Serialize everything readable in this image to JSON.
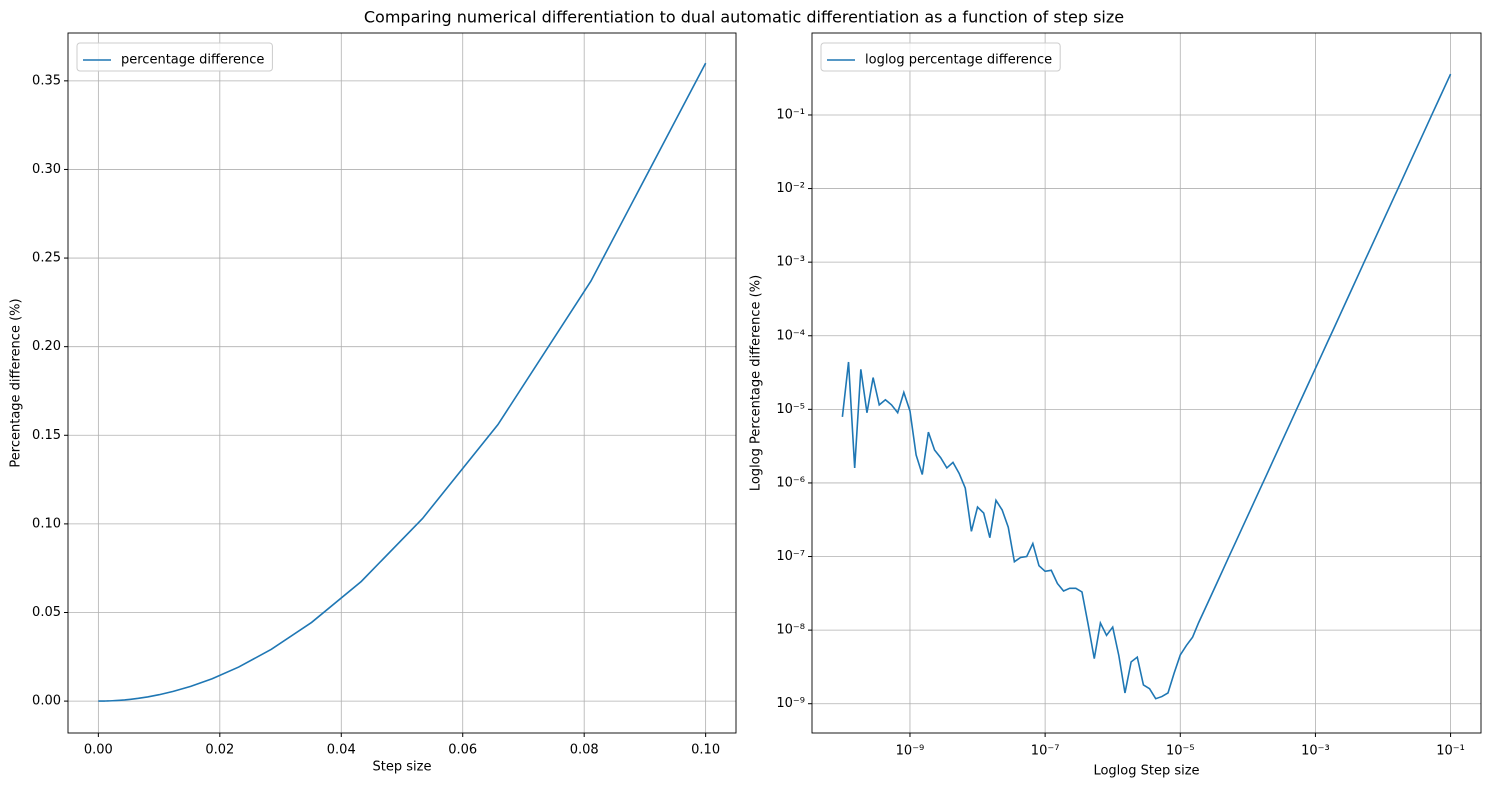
{
  "title": "Comparing numerical differentiation to dual automatic differentiation as a function of step size",
  "chart_data": [
    {
      "type": "line",
      "xlabel": "Step size",
      "ylabel": "Percentage difference (%)",
      "grid": true,
      "legend": "upper left",
      "xscale": "linear",
      "yscale": "linear",
      "xlim": [
        -0.005,
        0.105
      ],
      "ylim": [
        -0.018,
        0.377
      ],
      "xticks": [
        {
          "value": 0,
          "label": "0.00"
        },
        {
          "value": 0.02,
          "label": "0.02"
        },
        {
          "value": 0.04,
          "label": "0.04"
        },
        {
          "value": 0.06,
          "label": "0.06"
        },
        {
          "value": 0.08,
          "label": "0.08"
        },
        {
          "value": 0.1,
          "label": "0.10"
        }
      ],
      "yticks": [
        {
          "value": 0,
          "label": "0.00"
        },
        {
          "value": 0.05,
          "label": "0.05"
        },
        {
          "value": 0.1,
          "label": "0.10"
        },
        {
          "value": 0.15,
          "label": "0.15"
        },
        {
          "value": 0.2,
          "label": "0.20"
        },
        {
          "value": 0.25,
          "label": "0.25"
        },
        {
          "value": 0.3,
          "label": "0.30"
        },
        {
          "value": 0.35,
          "label": "0.35"
        }
      ],
      "x": [
        1e-10,
        0.001,
        0.001233,
        0.00152,
        0.001874,
        0.00231,
        0.002848,
        0.003511,
        0.004329,
        0.005337,
        0.006579,
        0.008111,
        0.01,
        0.01233,
        0.0152,
        0.01874,
        0.0231,
        0.02848,
        0.03511,
        0.04329,
        0.05337,
        0.06579,
        0.08111,
        0.1
      ],
      "series": [
        {
          "name": "percentage difference",
          "color": "#1f77b4",
          "values": [
            7.9e-06,
            3.6e-05,
            5.47e-05,
            8.32e-05,
            0.000126,
            0.000192,
            0.000292,
            0.000444,
            0.000675,
            0.00103,
            0.00156,
            0.00237,
            0.0036,
            0.00547,
            0.00832,
            0.0126,
            0.0192,
            0.0292,
            0.0444,
            0.0675,
            0.103,
            0.156,
            0.237,
            0.36
          ]
        }
      ]
    },
    {
      "type": "line",
      "xlabel": "Loglog Step size",
      "ylabel": "Loglog Percentage difference (%)",
      "grid": true,
      "legend": "upper left",
      "xscale": "log",
      "yscale": "log",
      "xlim": [
        3.55e-11,
        0.282
      ],
      "ylim": [
        4e-10,
        1.3
      ],
      "xticks": [
        {
          "value": 1e-09,
          "label": "10⁻⁹"
        },
        {
          "value": 1e-07,
          "label": "10⁻⁷"
        },
        {
          "value": 1e-05,
          "label": "10⁻⁵"
        },
        {
          "value": 0.001,
          "label": "10⁻³"
        },
        {
          "value": 0.1,
          "label": "10⁻¹"
        }
      ],
      "yticks": [
        {
          "value": 1e-09,
          "label": "10⁻⁹"
        },
        {
          "value": 1e-08,
          "label": "10⁻⁸"
        },
        {
          "value": 1e-07,
          "label": "10⁻⁷"
        },
        {
          "value": 1e-06,
          "label": "10⁻⁶"
        },
        {
          "value": 1e-05,
          "label": "10⁻⁵"
        },
        {
          "value": 0.0001,
          "label": "10⁻⁴"
        },
        {
          "value": 0.001,
          "label": "10⁻³"
        },
        {
          "value": 0.01,
          "label": "10⁻²"
        },
        {
          "value": 0.1,
          "label": "10⁻¹"
        }
      ],
      "x": [
        1e-10,
        1.233e-10,
        1.52e-10,
        1.874e-10,
        2.31e-10,
        2.848e-10,
        3.511e-10,
        4.329e-10,
        5.337e-10,
        6.579e-10,
        8.111e-10,
        1e-09,
        1.233e-09,
        1.52e-09,
        1.874e-09,
        2.31e-09,
        2.848e-09,
        3.511e-09,
        4.329e-09,
        5.337e-09,
        6.579e-09,
        8.111e-09,
        1e-08,
        1.233e-08,
        1.52e-08,
        1.874e-08,
        2.31e-08,
        2.848e-08,
        3.511e-08,
        4.329e-08,
        5.337e-08,
        6.579e-08,
        8.111e-08,
        1e-07,
        1.233e-07,
        1.52e-07,
        1.874e-07,
        2.31e-07,
        2.848e-07,
        3.511e-07,
        4.329e-07,
        5.337e-07,
        6.579e-07,
        8.111e-07,
        1e-06,
        1.233e-06,
        1.52e-06,
        1.874e-06,
        2.31e-06,
        2.848e-06,
        3.511e-06,
        4.329e-06,
        5.337e-06,
        6.579e-06,
        8.111e-06,
        1e-05,
        1.233e-05,
        1.52e-05,
        1.874e-05,
        2.31e-05,
        2.848e-05,
        3.511e-05,
        4.329e-05,
        5.337e-05,
        6.579e-05,
        8.111e-05,
        0.0001,
        0.0001233,
        0.000152,
        0.0001874,
        0.000231,
        0.0002848,
        0.0003511,
        0.0004329,
        0.0005337,
        0.0006579,
        0.0008111,
        0.001,
        0.001233,
        0.00152,
        0.001874,
        0.00231,
        0.002848,
        0.003511,
        0.004329,
        0.005337,
        0.006579,
        0.008111,
        0.01,
        0.01233,
        0.0152,
        0.01874,
        0.0231,
        0.02848,
        0.03511,
        0.04329,
        0.05337,
        0.06579,
        0.08111,
        0.1
      ],
      "series": [
        {
          "name": "loglog percentage difference",
          "color": "#1f77b4",
          "values": [
            7.9e-06,
            4.4e-05,
            1.6e-06,
            3.5e-05,
            9e-06,
            2.7e-05,
            1.15e-05,
            1.35e-05,
            1.15e-05,
            9e-06,
            1.7e-05,
            9.5e-06,
            2.4e-06,
            1.3e-06,
            4.9e-06,
            2.8e-06,
            2.2e-06,
            1.6e-06,
            1.9e-06,
            1.35e-06,
            8.5e-07,
            2.2e-07,
            4.7e-07,
            3.9e-07,
            1.8e-07,
            5.8e-07,
            4.3e-07,
            2.5e-07,
            8.5e-08,
            9.7e-08,
            1e-07,
            1.5e-07,
            7.5e-08,
            6.3e-08,
            6.5e-08,
            4.3e-08,
            3.4e-08,
            3.7e-08,
            3.7e-08,
            3.3e-08,
            1.2e-08,
            4.1e-09,
            1.25e-08,
            8.5e-09,
            1.1e-08,
            4.5e-09,
            1.4e-09,
            3.7e-09,
            4.3e-09,
            1.8e-09,
            1.6e-09,
            1.17e-09,
            1.25e-09,
            1.4e-09,
            2.6e-09,
            4.6e-09,
            6.2e-09,
            8e-09,
            1.27e-08,
            1.92e-08,
            2.92e-08,
            4.44e-08,
            6.75e-08,
            1.03e-07,
            1.56e-07,
            2.37e-07,
            3.6e-07,
            5.47e-07,
            8.32e-07,
            1.26e-06,
            1.92e-06,
            2.92e-06,
            4.44e-06,
            6.75e-06,
            1.03e-05,
            1.56e-05,
            2.37e-05,
            3.6e-05,
            5.47e-05,
            8.32e-05,
            0.000126,
            0.000192,
            0.000292,
            0.000444,
            0.000675,
            0.00103,
            0.00156,
            0.00237,
            0.0036,
            0.00547,
            0.00832,
            0.0126,
            0.0192,
            0.0292,
            0.0444,
            0.0675,
            0.103,
            0.156,
            0.237,
            0.36
          ]
        }
      ]
    }
  ]
}
